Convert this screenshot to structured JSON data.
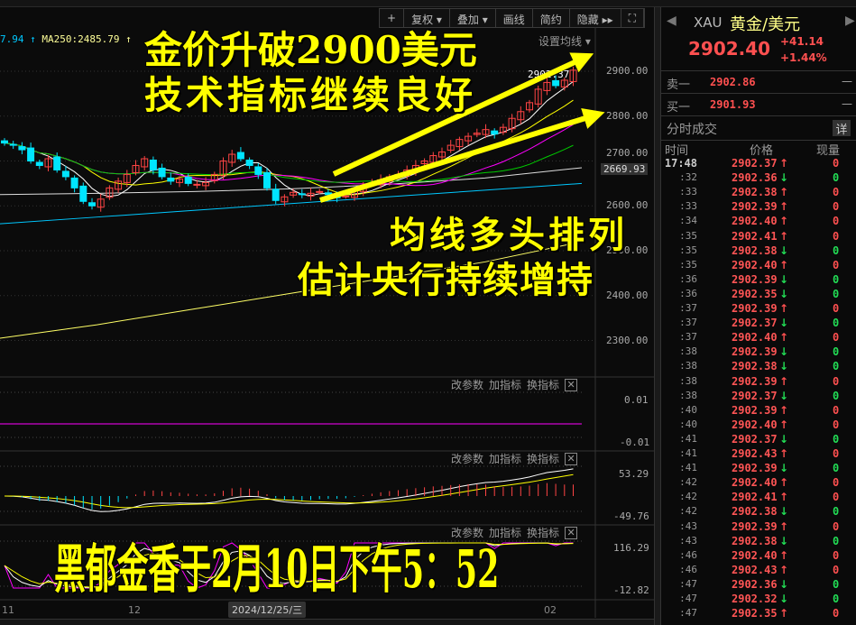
{
  "toolbar": {
    "items": [
      "+",
      "复权 ▾",
      "叠加 ▾",
      "画线",
      "简约",
      "隐藏 ▸▸",
      "⛶"
    ]
  },
  "main_chart": {
    "ma_legend": [
      {
        "text": "7.94 ↑",
        "color": "#00c8ff"
      },
      {
        "text": "MA250:2485.79 ↑",
        "color": "#ffff99"
      }
    ],
    "set_ma_label": "设置均线 ▾",
    "price_axis": [
      "2900.00",
      "2800.00",
      "2700.00",
      "2600.00",
      "2500.00",
      "2400.00",
      "2300.00"
    ],
    "cursor_price": "2669.93",
    "last_price_label": "2902.37",
    "closes": [
      2740,
      2735,
      2725,
      2700,
      2690,
      2705,
      2680,
      2665,
      2640,
      2610,
      2600,
      2615,
      2640,
      2655,
      2670,
      2690,
      2705,
      2680,
      2665,
      2655,
      2660,
      2650,
      2648,
      2652,
      2670,
      2700,
      2715,
      2705,
      2690,
      2670,
      2640,
      2612,
      2620,
      2630,
      2625,
      2628,
      2632,
      2625,
      2618,
      2622,
      2635,
      2645,
      2650,
      2658,
      2665,
      2670,
      2680,
      2690,
      2700,
      2712,
      2720,
      2735,
      2748,
      2755,
      2762,
      2770,
      2760,
      2775,
      2795,
      2810,
      2830,
      2860,
      2875,
      2868,
      2880,
      2902.4
    ],
    "long_ma": [
      {
        "color": "#00c8ff",
        "values": [
          2560,
          2575,
          2590,
          2605,
          2620,
          2635,
          2650
        ]
      },
      {
        "color": "#ffff66",
        "values": [
          2305,
          2335,
          2370,
          2405,
          2440,
          2475,
          2520
        ]
      },
      {
        "color": "#dddddd",
        "values": [
          2625,
          2628,
          2632,
          2638,
          2648,
          2662,
          2685
        ]
      }
    ],
    "colors": {
      "up": "#ff4444",
      "down": "#00e5ff",
      "ma5": "#ffffff",
      "ma10": "#ffff00",
      "ma20": "#ff00ff",
      "ma30": "#00cc00"
    }
  },
  "panels": [
    {
      "tools": [
        "改参数",
        "加指标",
        "换指标"
      ],
      "close": "✕",
      "axis": [
        "0.01",
        "-0.01"
      ]
    },
    {
      "tools": [
        "改参数",
        "加指标",
        "换指标"
      ],
      "close": "✕",
      "axis": [
        "53.29",
        "-49.76"
      ]
    },
    {
      "tools": [
        "改参数",
        "加指标",
        "换指标"
      ],
      "close": "✕",
      "axis": [
        "116.29",
        "-12.82"
      ]
    }
  ],
  "x_axis": {
    "labels": [
      "11",
      "12",
      "02"
    ],
    "cursor_date": "2024/12/25/三"
  },
  "overlay": {
    "title1": "金价升破2900美元",
    "title2": "技术指标继续良好",
    "note1": "均线多头排列",
    "note2": "估计央行持续增持",
    "footer": "黑郁金香于2月10日下午5：52"
  },
  "quote": {
    "code": "XAU",
    "name": "黄金/美元",
    "price": "2902.40",
    "change": "+41.14",
    "change_pct": "+1.44%",
    "ask_label": "卖一",
    "ask": "2902.86",
    "ask_vol": "—",
    "bid_label": "买一",
    "bid": "2901.93",
    "bid_vol": "—",
    "ticks_title": "分时成交",
    "detail_button": "详",
    "headers": [
      "时间",
      "价格",
      "现量"
    ],
    "ticks": [
      {
        "t": "17:48",
        "p": "2902.37",
        "d": "up",
        "v": "0"
      },
      {
        "t": ":32",
        "p": "2902.36",
        "d": "down",
        "v": "0"
      },
      {
        "t": ":33",
        "p": "2902.38",
        "d": "up",
        "v": "0"
      },
      {
        "t": ":33",
        "p": "2902.39",
        "d": "up",
        "v": "0"
      },
      {
        "t": ":34",
        "p": "2902.40",
        "d": "up",
        "v": "0"
      },
      {
        "t": ":35",
        "p": "2902.41",
        "d": "up",
        "v": "0"
      },
      {
        "t": ":35",
        "p": "2902.38",
        "d": "down",
        "v": "0"
      },
      {
        "t": ":35",
        "p": "2902.40",
        "d": "up",
        "v": "0"
      },
      {
        "t": ":36",
        "p": "2902.39",
        "d": "down",
        "v": "0"
      },
      {
        "t": ":36",
        "p": "2902.35",
        "d": "down",
        "v": "0"
      },
      {
        "t": ":37",
        "p": "2902.39",
        "d": "up",
        "v": "0"
      },
      {
        "t": ":37",
        "p": "2902.37",
        "d": "down",
        "v": "0"
      },
      {
        "t": ":37",
        "p": "2902.40",
        "d": "up",
        "v": "0"
      },
      {
        "t": ":38",
        "p": "2902.39",
        "d": "down",
        "v": "0"
      },
      {
        "t": ":38",
        "p": "2902.38",
        "d": "down",
        "v": "0"
      },
      {
        "t": ":38",
        "p": "2902.39",
        "d": "up",
        "v": "0"
      },
      {
        "t": ":38",
        "p": "2902.37",
        "d": "down",
        "v": "0"
      },
      {
        "t": ":40",
        "p": "2902.39",
        "d": "up",
        "v": "0"
      },
      {
        "t": ":40",
        "p": "2902.40",
        "d": "up",
        "v": "0"
      },
      {
        "t": ":41",
        "p": "2902.37",
        "d": "down",
        "v": "0"
      },
      {
        "t": ":41",
        "p": "2902.43",
        "d": "up",
        "v": "0"
      },
      {
        "t": ":41",
        "p": "2902.39",
        "d": "down",
        "v": "0"
      },
      {
        "t": ":42",
        "p": "2902.40",
        "d": "up",
        "v": "0"
      },
      {
        "t": ":42",
        "p": "2902.41",
        "d": "up",
        "v": "0"
      },
      {
        "t": ":42",
        "p": "2902.38",
        "d": "down",
        "v": "0"
      },
      {
        "t": ":43",
        "p": "2902.39",
        "d": "up",
        "v": "0"
      },
      {
        "t": ":43",
        "p": "2902.38",
        "d": "down",
        "v": "0"
      },
      {
        "t": ":46",
        "p": "2902.40",
        "d": "up",
        "v": "0"
      },
      {
        "t": ":46",
        "p": "2902.43",
        "d": "up",
        "v": "0"
      },
      {
        "t": ":47",
        "p": "2902.36",
        "d": "down",
        "v": "0"
      },
      {
        "t": ":47",
        "p": "2902.32",
        "d": "down",
        "v": "0"
      },
      {
        "t": ":47",
        "p": "2902.35",
        "d": "up",
        "v": "0"
      }
    ]
  }
}
